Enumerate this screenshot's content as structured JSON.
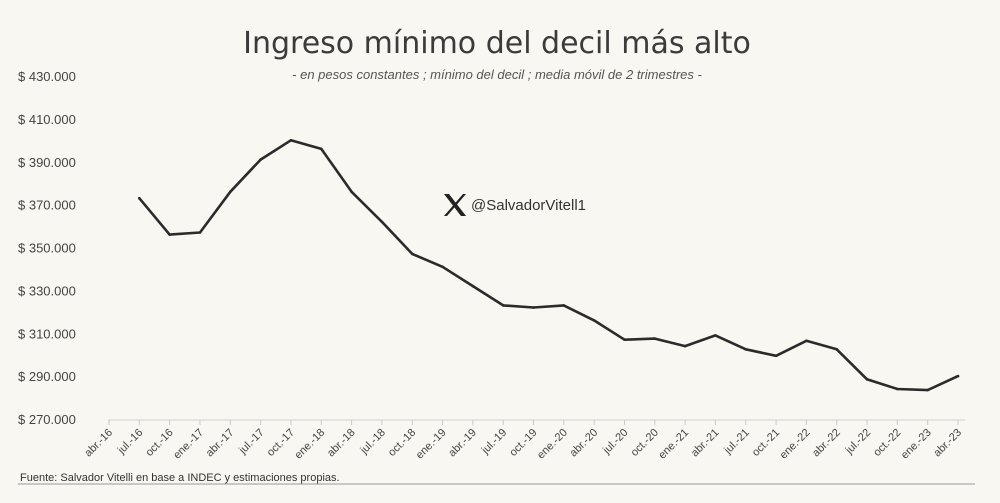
{
  "chart_data": {
    "type": "line",
    "title": "Ingreso mínimo del decil más alto",
    "subtitle": "- en pesos constantes ; mínimo del decil ; media móvil de 2 trimestres -",
    "xlabel": "",
    "ylabel": "",
    "ylim": [
      270000,
      430000
    ],
    "y_ticks": [
      270000,
      290000,
      310000,
      330000,
      350000,
      370000,
      390000,
      410000,
      430000
    ],
    "y_tick_labels": [
      "$ 270.000",
      "$ 290.000",
      "$ 310.000",
      "$ 330.000",
      "$ 350.000",
      "$ 370.000",
      "$ 390.000",
      "$ 410.000",
      "$ 430.000"
    ],
    "grid": false,
    "line_color": "#2b2b2b",
    "categories": [
      "abr.-16",
      "jul.-16",
      "oct.-16",
      "ene.-17",
      "abr.-17",
      "jul.-17",
      "oct.-17",
      "ene.-18",
      "abr.-18",
      "jul.-18",
      "oct.-18",
      "ene.-19",
      "abr.-19",
      "jul.-19",
      "oct.-19",
      "ene.-20",
      "abr.-20",
      "jul.-20",
      "oct.-20",
      "ene.-21",
      "abr.-21",
      "jul.-21",
      "oct.-21",
      "ene.-22",
      "abr.-22",
      "jul.-22",
      "oct.-22",
      "ene.-23",
      "abr.-23"
    ],
    "series": [
      {
        "values": [
          null,
          373000,
          356000,
          357000,
          376000,
          391000,
          400000,
          396000,
          376000,
          362000,
          347000,
          341000,
          332000,
          323000,
          322000,
          323000,
          316000,
          307000,
          307500,
          304000,
          309000,
          302500,
          299500,
          306500,
          302500,
          288500,
          284000,
          283500,
          290000
        ]
      }
    ]
  },
  "watermark": {
    "icon": "x-logo-icon",
    "handle": "@SalvadorVitell1"
  },
  "source": "Fuente: Salvador Vitelli en base a INDEC y estimaciones propias."
}
